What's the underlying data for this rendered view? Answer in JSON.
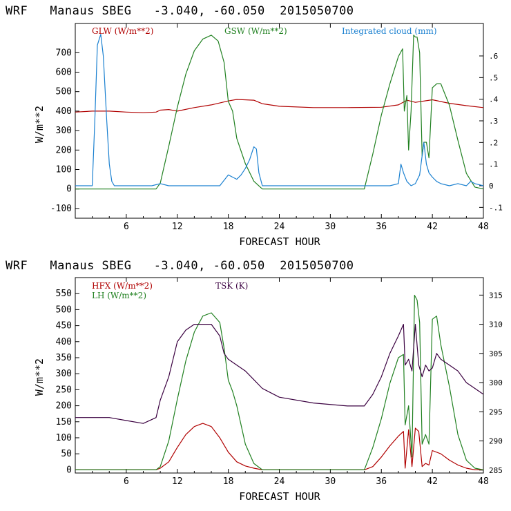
{
  "colors": {
    "red": "#b00000",
    "green": "#208020",
    "blue": "#1a80d0",
    "purple": "#3a0040",
    "axis": "#000000"
  },
  "chart_data": [
    {
      "type": "line",
      "title": "WRF   Manaus SBEG   -3.040, -60.050  2015050700",
      "xlabel": "FORECAST HOUR",
      "ylabel": "W/m**2",
      "xlim": [
        0,
        48
      ],
      "ylim": [
        -150,
        850
      ],
      "y2lim": [
        -0.15,
        0.75
      ],
      "xticks": [
        "6",
        "12",
        "18",
        "24",
        "30",
        "36",
        "42",
        "48"
      ],
      "xtick_values": [
        6,
        12,
        18,
        24,
        30,
        36,
        42,
        48
      ],
      "yticks": [
        "-100",
        "0",
        "100",
        "200",
        "300",
        "400",
        "500",
        "600",
        "700"
      ],
      "ytick_values": [
        -100,
        0,
        100,
        200,
        300,
        400,
        500,
        600,
        700
      ],
      "y2ticks": [
        "-.1",
        "0",
        ".1",
        ".2",
        ".3",
        ".4",
        ".5",
        ".6"
      ],
      "y2tick_values": [
        -0.1,
        0,
        0.1,
        0.2,
        0.3,
        0.4,
        0.5,
        0.6
      ],
      "series": [
        {
          "name": "GLW (W/m**2)",
          "color_key": "red",
          "axis": "left",
          "x": [
            0,
            2,
            4,
            6,
            8,
            9.5,
            10,
            11,
            12,
            14,
            16,
            18,
            19,
            21,
            22,
            24,
            28,
            32,
            36,
            38,
            39,
            40,
            42,
            44,
            46,
            48
          ],
          "y": [
            395,
            400,
            400,
            395,
            392,
            395,
            405,
            408,
            400,
            418,
            432,
            452,
            460,
            456,
            438,
            425,
            418,
            418,
            420,
            432,
            456,
            445,
            458,
            440,
            428,
            418
          ]
        },
        {
          "name": "GSW (W/m**2)",
          "color_key": "green",
          "axis": "left",
          "x": [
            0,
            9.5,
            10,
            11,
            12,
            13,
            14,
            15,
            16,
            16.8,
            17.5,
            18,
            18.5,
            19,
            20,
            21,
            22,
            24,
            30,
            34,
            35,
            36,
            37,
            38,
            38.5,
            38.7,
            39,
            39.2,
            39.5,
            39.8,
            40,
            40.2,
            40.5,
            40.8,
            41,
            41.3,
            41.6,
            42,
            42.5,
            43,
            44,
            45,
            46,
            47,
            48
          ],
          "y": [
            0,
            0,
            30,
            220,
            420,
            590,
            710,
            770,
            790,
            760,
            650,
            450,
            400,
            260,
            130,
            40,
            0,
            0,
            0,
            0,
            180,
            380,
            540,
            680,
            720,
            400,
            480,
            200,
            400,
            790,
            780,
            780,
            700,
            170,
            240,
            240,
            160,
            520,
            540,
            540,
            430,
            250,
            80,
            10,
            0
          ]
        },
        {
          "name": "Integrated cloud (mm)",
          "color_key": "blue",
          "axis": "right",
          "x": [
            0,
            2,
            2.3,
            2.6,
            3,
            3.3,
            3.7,
            4,
            4.3,
            4.6,
            5,
            6,
            9,
            10,
            11,
            12,
            17,
            18,
            18.5,
            19,
            19.5,
            20,
            20.5,
            21,
            21.3,
            21.6,
            22,
            24,
            30,
            37,
            38,
            38.3,
            38.6,
            39,
            39.5,
            40,
            40.5,
            41,
            41.3,
            41.6,
            42,
            42.5,
            43,
            44,
            45,
            46,
            46.5,
            47,
            48
          ],
          "y": [
            0,
            0,
            0.3,
            0.65,
            0.7,
            0.6,
            0.3,
            0.1,
            0.02,
            0,
            0,
            0,
            0,
            0.01,
            0,
            0,
            0,
            0.05,
            0.04,
            0.03,
            0.05,
            0.08,
            0.12,
            0.18,
            0.17,
            0.06,
            0,
            0,
            0,
            0,
            0.01,
            0.1,
            0.06,
            0.02,
            0,
            0.01,
            0.05,
            0.2,
            0.1,
            0.06,
            0.04,
            0.02,
            0.01,
            0,
            0.01,
            0,
            0.02,
            0.01,
            0
          ]
        }
      ]
    },
    {
      "type": "line",
      "title": "WRF   Manaus SBEG   -3.040, -60.050  2015050700",
      "xlabel": "FORECAST HOUR",
      "ylabel": "W/m**2",
      "xlim": [
        0,
        48
      ],
      "ylim": [
        -10,
        600
      ],
      "y2lim": [
        284.5,
        318
      ],
      "xticks": [
        "6",
        "12",
        "18",
        "24",
        "30",
        "36",
        "42",
        "48"
      ],
      "xtick_values": [
        6,
        12,
        18,
        24,
        30,
        36,
        42,
        48
      ],
      "yticks": [
        "0",
        "50",
        "100",
        "150",
        "200",
        "250",
        "300",
        "350",
        "400",
        "450",
        "500",
        "550"
      ],
      "ytick_values": [
        0,
        50,
        100,
        150,
        200,
        250,
        300,
        350,
        400,
        450,
        500,
        550
      ],
      "y2ticks": [
        "285",
        "290",
        "295",
        "300",
        "305",
        "310",
        "315"
      ],
      "y2tick_values": [
        285,
        290,
        295,
        300,
        305,
        310,
        315
      ],
      "series": [
        {
          "name": "HFX (W/m**2)",
          "color_key": "red",
          "axis": "left",
          "x": [
            0,
            9.5,
            10,
            11,
            12,
            13,
            14,
            15,
            16,
            17,
            18,
            19,
            20,
            21,
            22,
            24,
            30,
            34,
            35,
            36,
            37,
            38,
            38.6,
            38.8,
            39.2,
            39.6,
            40,
            40.4,
            40.8,
            41.2,
            41.6,
            42,
            43,
            44,
            45,
            46,
            47,
            48
          ],
          "y": [
            0,
            0,
            5,
            25,
            70,
            110,
            135,
            145,
            135,
            100,
            55,
            25,
            12,
            5,
            0,
            0,
            0,
            0,
            10,
            40,
            75,
            105,
            120,
            5,
            125,
            10,
            130,
            120,
            10,
            20,
            15,
            60,
            50,
            30,
            15,
            5,
            0,
            0
          ]
        },
        {
          "name": "LH (W/m**2)",
          "color_key": "green",
          "axis": "left",
          "x": [
            0,
            9.5,
            10,
            11,
            12,
            13,
            14,
            15,
            16,
            17,
            17.5,
            18,
            18.5,
            19,
            20,
            21,
            22,
            24,
            30,
            34,
            35,
            36,
            37,
            38,
            38.6,
            38.8,
            39.2,
            39.6,
            39.9,
            40.2,
            40.5,
            40.8,
            41.2,
            41.6,
            42,
            42.5,
            43,
            44,
            45,
            46,
            47,
            48
          ],
          "y": [
            0,
            0,
            10,
            90,
            220,
            340,
            430,
            480,
            490,
            460,
            380,
            280,
            245,
            200,
            80,
            20,
            0,
            0,
            0,
            0,
            70,
            160,
            270,
            350,
            360,
            140,
            200,
            40,
            545,
            530,
            460,
            80,
            110,
            80,
            470,
            480,
            390,
            260,
            110,
            30,
            5,
            0
          ]
        },
        {
          "name": "TSK (K)",
          "color_key": "purple",
          "axis": "right",
          "x": [
            0,
            2,
            4,
            6,
            8,
            9.5,
            10,
            11,
            12,
            13,
            14,
            16,
            17,
            17.5,
            18,
            19,
            20,
            21,
            22,
            24,
            28,
            32,
            34,
            35,
            36,
            37,
            38,
            38.6,
            38.8,
            39.2,
            39.6,
            40,
            40.4,
            40.8,
            41.2,
            41.6,
            42,
            42.5,
            43,
            44,
            45,
            46,
            47,
            48
          ],
          "y": [
            294,
            294,
            294,
            293.5,
            293,
            294,
            297,
            301,
            307,
            309,
            310,
            310,
            308,
            305,
            304,
            303,
            302,
            300.5,
            299,
            297.5,
            296.5,
            296,
            296,
            298,
            301,
            305,
            308,
            310,
            303,
            304,
            302,
            310,
            303,
            301,
            303,
            302,
            302.5,
            305,
            304,
            303,
            302,
            300,
            299,
            298
          ]
        }
      ]
    }
  ]
}
